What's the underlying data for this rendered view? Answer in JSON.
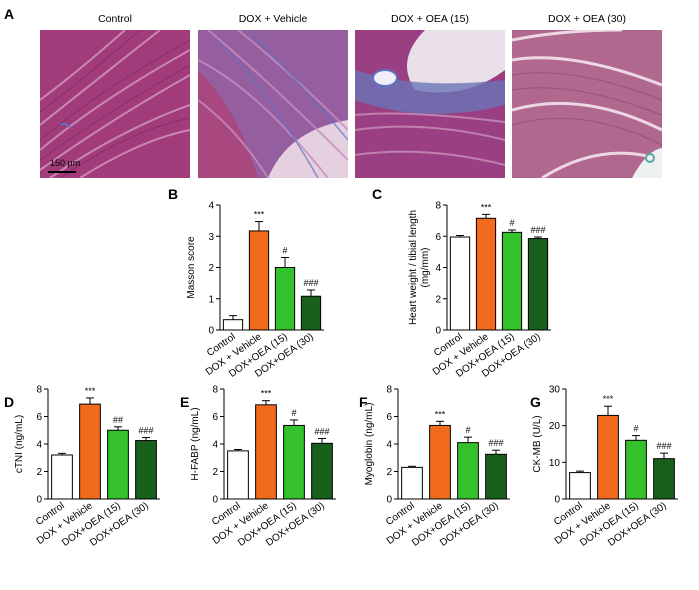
{
  "panel_A": {
    "letter": "A",
    "images": [
      {
        "title": "Control",
        "tissue_color": "#a23b7a"
      },
      {
        "title": "DOX + Vehicle",
        "tissue_color": "#8d5a9e"
      },
      {
        "title": "DOX + OEA (15)",
        "tissue_color": "#9a3f82"
      },
      {
        "title": "DOX + OEA (30)",
        "tissue_color": "#b0688f"
      }
    ],
    "scale_bar_label": "150 μm"
  },
  "colors": {
    "control": "#ffffff",
    "vehicle": "#f26b1d",
    "oea15": "#33c22b",
    "oea30": "#18601c",
    "collagen": "#5b73c4",
    "background_tissue": "#f3ecef"
  },
  "chart_data": [
    {
      "id": "B",
      "type": "bar",
      "ylabel": "Masson score",
      "categories": [
        "Control",
        "DOX + Vehicle",
        "DOX+OEA (15)",
        "DOX+OEA (30)"
      ],
      "values": [
        0.33,
        3.17,
        2.0,
        1.08
      ],
      "errors": [
        0.13,
        0.3,
        0.32,
        0.2
      ],
      "annotations": [
        "",
        "***",
        "#",
        "###"
      ],
      "ylim": [
        0,
        4
      ],
      "yticks": [
        0,
        1,
        2,
        3,
        4
      ]
    },
    {
      "id": "C",
      "type": "bar",
      "ylabel": "Heart weight / tibial length (mg/mm)",
      "categories": [
        "Control",
        "DOX + Vehicle",
        "DOX+OEA (15)",
        "DOX+OEA (30)"
      ],
      "values": [
        5.95,
        7.15,
        6.25,
        5.85
      ],
      "errors": [
        0.1,
        0.25,
        0.15,
        0.1
      ],
      "annotations": [
        "",
        "***",
        "#",
        "###"
      ],
      "ylim": [
        0,
        8
      ],
      "yticks": [
        0,
        2,
        4,
        6,
        8
      ]
    },
    {
      "id": "D",
      "type": "bar",
      "ylabel": "cTNI (ng/mL)",
      "categories": [
        "Control",
        "DOX + Vehicle",
        "DOX+OEA (15)",
        "DOX+OEA (30)"
      ],
      "values": [
        3.2,
        6.9,
        5.0,
        4.25
      ],
      "errors": [
        0.12,
        0.45,
        0.25,
        0.22
      ],
      "annotations": [
        "",
        "***",
        "##",
        "###"
      ],
      "ylim": [
        0,
        8
      ],
      "yticks": [
        0,
        2,
        4,
        6,
        8
      ]
    },
    {
      "id": "E",
      "type": "bar",
      "ylabel": "H-FABP (ng/mL)",
      "categories": [
        "Control",
        "DOX + Vehicle",
        "DOX+OEA (15)",
        "DOX+OEA (30)"
      ],
      "values": [
        3.5,
        6.85,
        5.35,
        4.05
      ],
      "errors": [
        0.1,
        0.3,
        0.4,
        0.35
      ],
      "annotations": [
        "",
        "***",
        "#",
        "###"
      ],
      "ylim": [
        0,
        8
      ],
      "yticks": [
        0,
        2,
        4,
        6,
        8
      ]
    },
    {
      "id": "F",
      "type": "bar",
      "ylabel": "Myoglobin (ng/mL)",
      "categories": [
        "Control",
        "DOX + Vehicle",
        "DOX+OEA (15)",
        "DOX+OEA (30)"
      ],
      "values": [
        2.3,
        5.35,
        4.1,
        3.25
      ],
      "errors": [
        0.08,
        0.3,
        0.4,
        0.3
      ],
      "annotations": [
        "",
        "***",
        "#",
        "###"
      ],
      "ylim": [
        0,
        8
      ],
      "yticks": [
        0,
        2,
        4,
        6,
        8
      ]
    },
    {
      "id": "G",
      "type": "bar",
      "ylabel": "CK-MB (U/L)",
      "categories": [
        "Control",
        "DOX + Vehicle",
        "DOX+OEA (15)",
        "DOX+OEA (30)"
      ],
      "values": [
        7.2,
        22.8,
        16.0,
        11.0
      ],
      "errors": [
        0.4,
        2.5,
        1.3,
        1.5
      ],
      "annotations": [
        "",
        "***",
        "#",
        "###"
      ],
      "ylim": [
        0,
        30
      ],
      "yticks": [
        0,
        10,
        20,
        30
      ]
    }
  ]
}
